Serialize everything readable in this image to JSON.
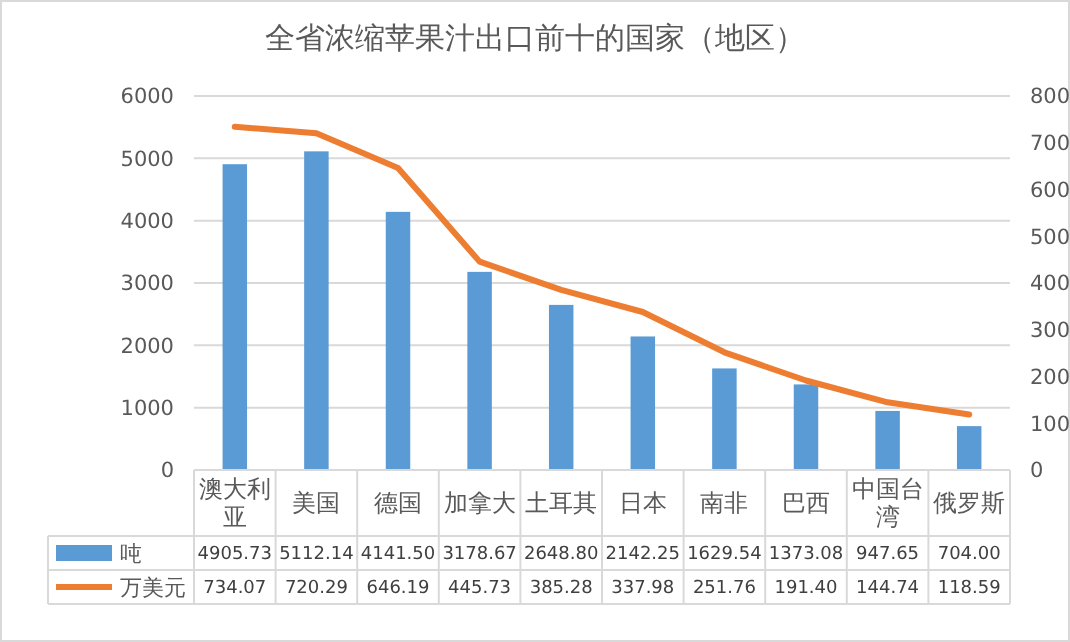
{
  "chart_data": {
    "type": "bar",
    "title": "全省浓缩苹果汁出口前十的国家（地区）",
    "categories": [
      "澳大利亚",
      "美国",
      "德国",
      "加拿大",
      "土耳其",
      "日本",
      "南非",
      "巴西",
      "中国台湾",
      "俄罗斯"
    ],
    "series": [
      {
        "name": "吨",
        "color": "#5b9bd5",
        "values": [
          4905.73,
          5112.14,
          4141.5,
          3178.67,
          2648.8,
          2142.25,
          1629.54,
          1373.08,
          947.65,
          704
        ],
        "value_labels": [
          "4905.73",
          "5112.14",
          "4141.50",
          "3178.67",
          "2648.80",
          "2142.25",
          "1629.54",
          "1373.08",
          "947.65",
          "704.00"
        ]
      },
      {
        "name": "万美元",
        "type": "line",
        "axis": "y2",
        "color": "#ed7d31",
        "values": [
          734.07,
          720.29,
          646.19,
          445.73,
          385.28,
          337.98,
          251.76,
          191.4,
          144.74,
          118.59
        ],
        "value_labels": [
          "734.07",
          "720.29",
          "646.19",
          "445.73",
          "385.28",
          "337.98",
          "251.76",
          "191.40",
          "144.74",
          "118.59"
        ]
      }
    ],
    "ylim": [
      0,
      6000
    ],
    "yticks": [
      0,
      1000,
      2000,
      3000,
      4000,
      5000,
      6000
    ],
    "y2lim": [
      0,
      800
    ],
    "y2ticks": [
      0,
      100,
      200,
      300,
      400,
      500,
      600,
      700,
      800
    ],
    "grid": "y",
    "legend": "bottom"
  }
}
